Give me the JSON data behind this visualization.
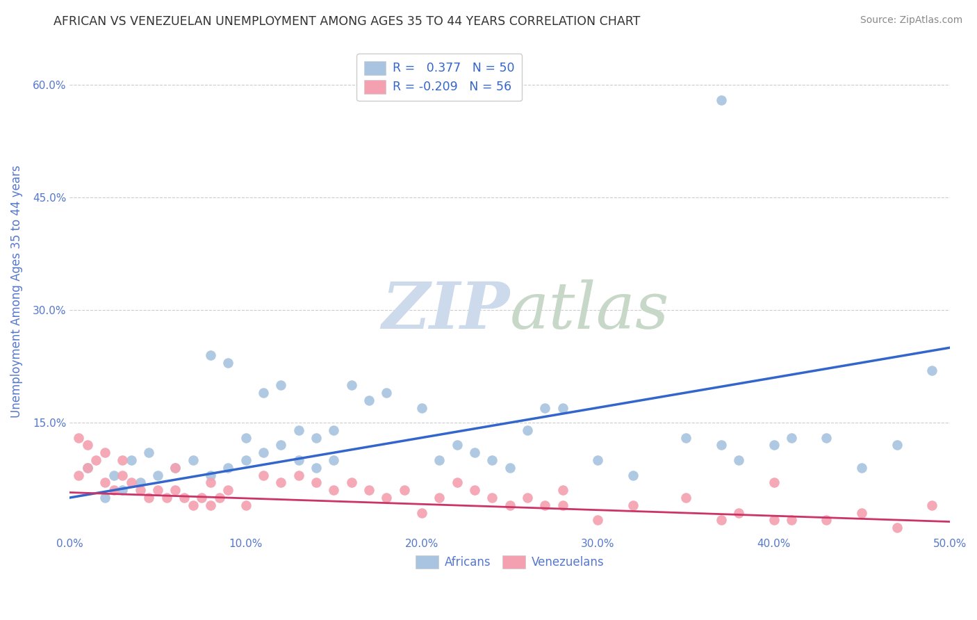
{
  "title": "AFRICAN VS VENEZUELAN UNEMPLOYMENT AMONG AGES 35 TO 44 YEARS CORRELATION CHART",
  "source": "Source: ZipAtlas.com",
  "ylabel": "Unemployment Among Ages 35 to 44 years",
  "xlim": [
    0.0,
    0.5
  ],
  "ylim": [
    0.0,
    0.65
  ],
  "xticks": [
    0.0,
    0.1,
    0.2,
    0.3,
    0.4,
    0.5
  ],
  "yticks": [
    0.0,
    0.15,
    0.3,
    0.45,
    0.6
  ],
  "xticklabels": [
    "0.0%",
    "10.0%",
    "20.0%",
    "30.0%",
    "40.0%",
    "50.0%"
  ],
  "yticklabels": [
    "",
    "15.0%",
    "30.0%",
    "45.0%",
    "60.0%"
  ],
  "grid_color": "#cccccc",
  "background_color": "#ffffff",
  "watermark_zip": "ZIP",
  "watermark_atlas": "atlas",
  "legend_line1": "R =   0.377   N = 50",
  "legend_line2": "R = -0.209   N = 56",
  "african_color": "#a8c4e0",
  "venezuelan_color": "#f4a0b0",
  "african_line_color": "#3366cc",
  "venezuelan_line_color": "#cc3366",
  "axis_label_color": "#5577cc",
  "tick_label_color": "#5577cc",
  "african_scatter_x": [
    0.02,
    0.03,
    0.04,
    0.025,
    0.01,
    0.035,
    0.045,
    0.05,
    0.06,
    0.07,
    0.08,
    0.09,
    0.1,
    0.11,
    0.12,
    0.13,
    0.14,
    0.15,
    0.08,
    0.09,
    0.1,
    0.11,
    0.12,
    0.13,
    0.14,
    0.15,
    0.16,
    0.17,
    0.18,
    0.2,
    0.21,
    0.22,
    0.23,
    0.24,
    0.25,
    0.26,
    0.27,
    0.28,
    0.3,
    0.32,
    0.35,
    0.37,
    0.38,
    0.4,
    0.41,
    0.43,
    0.45,
    0.47,
    0.49,
    0.37
  ],
  "african_scatter_y": [
    0.05,
    0.06,
    0.07,
    0.08,
    0.09,
    0.1,
    0.11,
    0.08,
    0.09,
    0.1,
    0.08,
    0.09,
    0.1,
    0.11,
    0.12,
    0.1,
    0.09,
    0.1,
    0.24,
    0.23,
    0.13,
    0.19,
    0.2,
    0.14,
    0.13,
    0.14,
    0.2,
    0.18,
    0.19,
    0.17,
    0.1,
    0.12,
    0.11,
    0.1,
    0.09,
    0.14,
    0.17,
    0.17,
    0.1,
    0.08,
    0.13,
    0.12,
    0.1,
    0.12,
    0.13,
    0.13,
    0.09,
    0.12,
    0.22,
    0.58
  ],
  "venezuelan_scatter_x": [
    0.005,
    0.01,
    0.015,
    0.02,
    0.025,
    0.03,
    0.035,
    0.04,
    0.045,
    0.05,
    0.055,
    0.06,
    0.065,
    0.07,
    0.075,
    0.08,
    0.085,
    0.09,
    0.1,
    0.11,
    0.12,
    0.13,
    0.14,
    0.15,
    0.16,
    0.17,
    0.18,
    0.19,
    0.2,
    0.21,
    0.22,
    0.23,
    0.24,
    0.25,
    0.26,
    0.27,
    0.28,
    0.3,
    0.32,
    0.35,
    0.37,
    0.38,
    0.4,
    0.41,
    0.43,
    0.45,
    0.47,
    0.49,
    0.28,
    0.4,
    0.005,
    0.01,
    0.02,
    0.03,
    0.06,
    0.08
  ],
  "venezuelan_scatter_y": [
    0.08,
    0.09,
    0.1,
    0.07,
    0.06,
    0.08,
    0.07,
    0.06,
    0.05,
    0.06,
    0.05,
    0.06,
    0.05,
    0.04,
    0.05,
    0.04,
    0.05,
    0.06,
    0.04,
    0.08,
    0.07,
    0.08,
    0.07,
    0.06,
    0.07,
    0.06,
    0.05,
    0.06,
    0.03,
    0.05,
    0.07,
    0.06,
    0.05,
    0.04,
    0.05,
    0.04,
    0.04,
    0.02,
    0.04,
    0.05,
    0.02,
    0.03,
    0.02,
    0.02,
    0.02,
    0.03,
    0.01,
    0.04,
    0.06,
    0.07,
    0.13,
    0.12,
    0.11,
    0.1,
    0.09,
    0.07
  ],
  "african_line_x": [
    0.0,
    0.5
  ],
  "african_line_y": [
    0.05,
    0.25
  ],
  "venezuelan_line_x": [
    0.0,
    0.5
  ],
  "venezuelan_line_y": [
    0.057,
    0.018
  ]
}
